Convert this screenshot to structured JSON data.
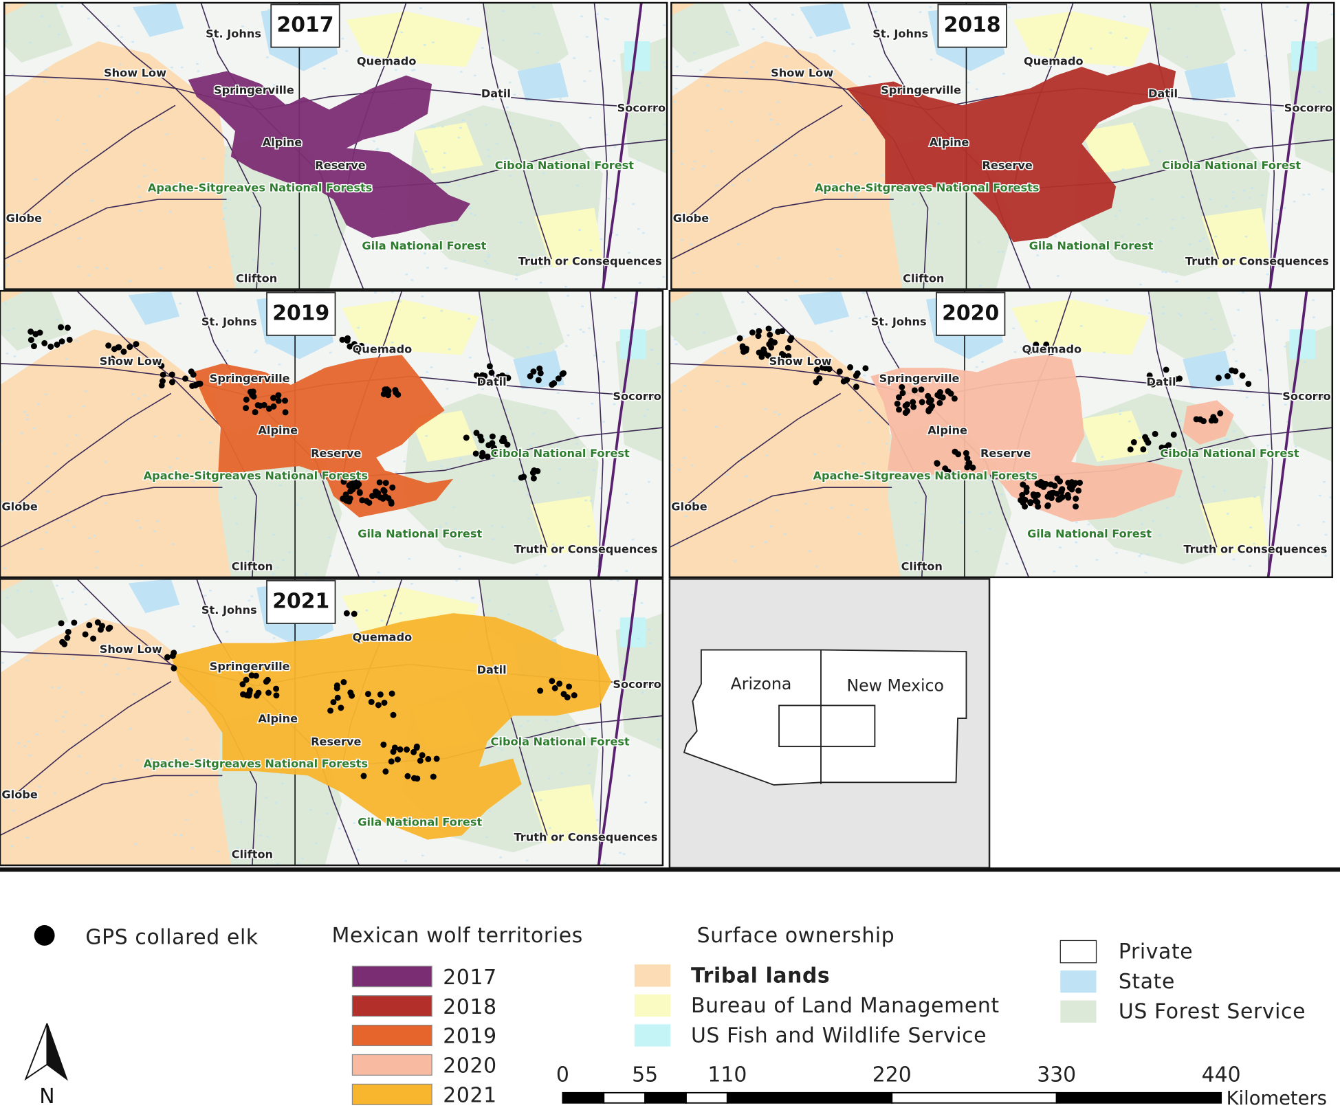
{
  "panels": [
    {
      "year": "2017"
    },
    {
      "year": "2018"
    },
    {
      "year": "2019"
    },
    {
      "year": "2020"
    },
    {
      "year": "2021"
    }
  ],
  "places": [
    "St. Johns",
    "Show Low",
    "Springerville",
    "Quemado",
    "Datil",
    "Socorro",
    "Alpine",
    "Reserve",
    "Cibola National Forest",
    "Apache-Sitgreaves National Forests",
    "Globe",
    "Gila National Forest",
    "Truth or Consequences",
    "Clifton"
  ],
  "inset": {
    "labels": [
      "Arizona",
      "New Mexico"
    ]
  },
  "legend": {
    "elk": "GPS collared elk",
    "territories": {
      "title": "Mexican wolf territories",
      "items": [
        {
          "label": "2017",
          "color": "#7b2d73"
        },
        {
          "label": "2018",
          "color": "#b3302a"
        },
        {
          "label": "2019",
          "color": "#e5652c"
        },
        {
          "label": "2020",
          "color": "#f8bba2"
        },
        {
          "label": "2021",
          "color": "#f8b52e"
        }
      ]
    },
    "ownership": {
      "title": "Surface ownership",
      "items": [
        {
          "label": "Tribal lands",
          "color": "#fbdcb4"
        },
        {
          "label": "Bureau of Land Management",
          "color": "#fafbc2"
        },
        {
          "label": "US Fish and Wildlife Service",
          "color": "#c4f4f6"
        },
        {
          "label": "Private",
          "color": "#ffffff"
        },
        {
          "label": "State",
          "color": "#bfe2f4"
        },
        {
          "label": "US Forest Service",
          "color": "#dce9d8"
        }
      ]
    }
  },
  "north": "N",
  "scale_bar": {
    "ticks": [
      0,
      55,
      110,
      220,
      330,
      440
    ],
    "unit": "Kilometers"
  }
}
